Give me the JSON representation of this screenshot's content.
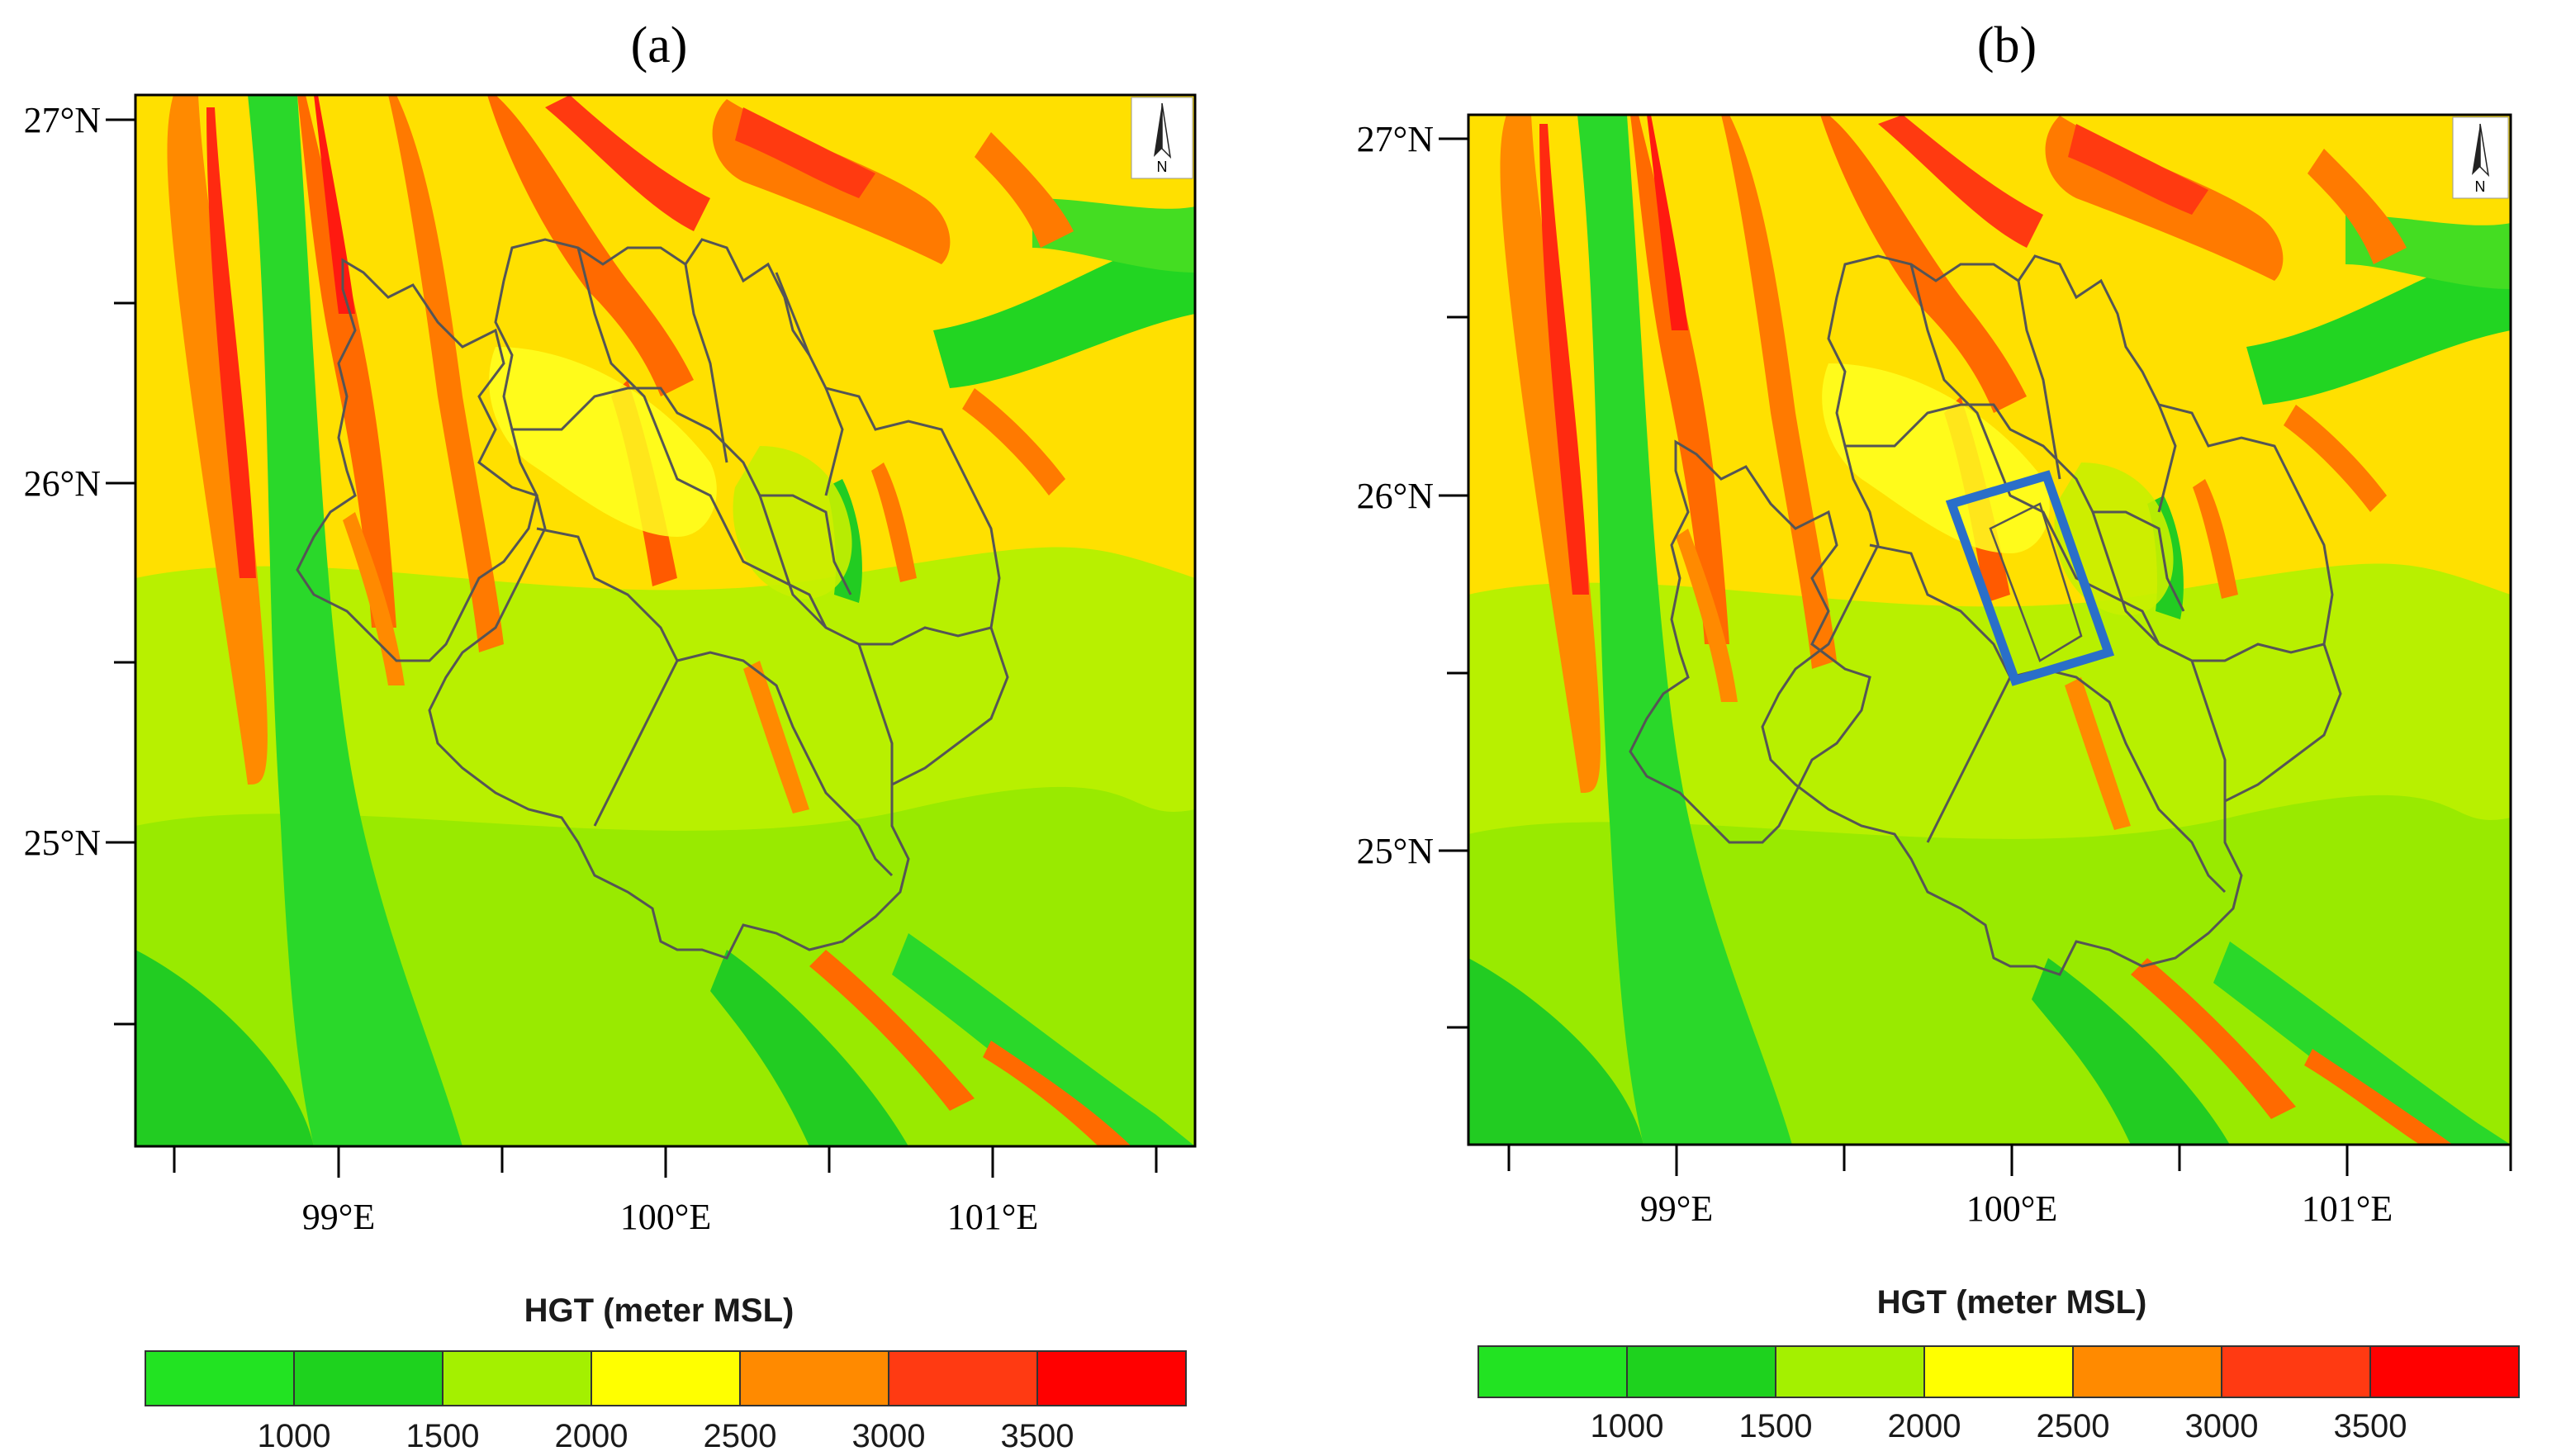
{
  "panels": [
    {
      "label": "(a)",
      "lat_labels": [
        "27°N",
        "26°N",
        "25°N"
      ],
      "lon_labels": [
        "99°E",
        "100°E",
        "101°E"
      ],
      "north_arrow": {
        "icon": "north-arrow-icon",
        "letter": "N"
      },
      "has_study_box": false
    },
    {
      "label": "(b)",
      "lat_labels": [
        "27°N",
        "26°N",
        "25°N"
      ],
      "lon_labels": [
        "99°E",
        "100°E",
        "101°E"
      ],
      "north_arrow": {
        "icon": "north-arrow-icon",
        "letter": "N"
      },
      "has_study_box": true,
      "study_box_color": "#2a6fc9"
    }
  ],
  "colorbars": [
    {
      "title": "HGT (meter MSL)",
      "ticks": [
        "1000",
        "1500",
        "2000",
        "2500",
        "3000",
        "3500"
      ]
    },
    {
      "title": "HGT (meter MSL)",
      "ticks": [
        "1000",
        "1500",
        "2000",
        "2500",
        "3000",
        "3500"
      ]
    }
  ],
  "legend_colors": [
    "#22e322",
    "#1ed21e",
    "#a4f000",
    "#ffff00",
    "#ff8a00",
    "#ff3a12",
    "#ff0000"
  ],
  "elevation_levels_m": [
    1000,
    1500,
    2000,
    2500,
    3000,
    3500
  ]
}
